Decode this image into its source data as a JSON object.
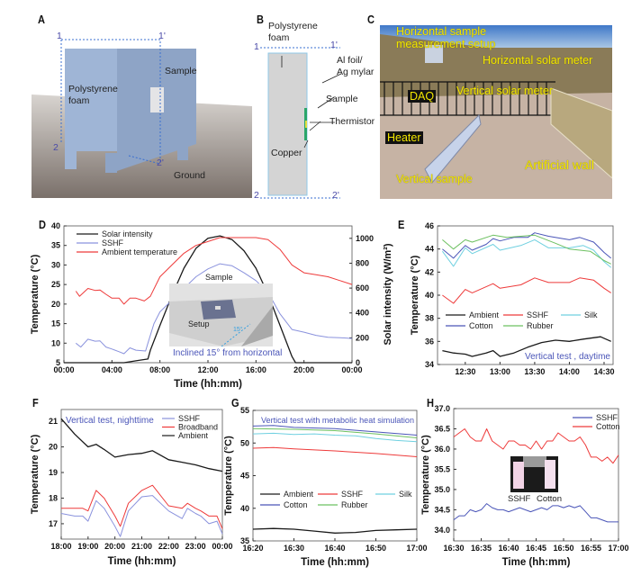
{
  "panels": {
    "A": {
      "letter": "A",
      "pt1": "1",
      "pt1p": "1'",
      "pt2": "2",
      "pt2p": "2'",
      "sample": "Sample",
      "foam1": "Polystyrene",
      "foam2": "foam",
      "ground": "Ground"
    },
    "B": {
      "letter": "B",
      "foam1": "Polystyrene",
      "foam2": "foam",
      "pt1": "1",
      "pt1p": "1'",
      "pt2": "2",
      "pt2p": "2'",
      "foil1": "Al foil/",
      "foil2": "Ag mylar",
      "sample": "Sample",
      "thermistor": "Thermistor",
      "copper": "Copper"
    },
    "C": {
      "letter": "C",
      "horiz_setup1": "Horizontal sample",
      "horiz_setup2": "measurement setup",
      "horiz_meter": "Horizontal solar meter",
      "daq": "DAQ",
      "vert_meter": "Vertical solar meter",
      "heater": "Heater",
      "vert_sample": "Vertical sample",
      "wall": "Artificial wall"
    },
    "D": {
      "letter": "D",
      "inset_sample": "Sample",
      "inset_setup": "Setup",
      "inset_angle": "15°",
      "inset_caption": "Inclined 15° from horizontal"
    },
    "E": {
      "letter": "E"
    },
    "F": {
      "letter": "F"
    },
    "G": {
      "letter": "G"
    },
    "H": {
      "letter": "H",
      "inset_left": "SSHF",
      "inset_right": "Cotton"
    }
  },
  "colors": {
    "black": "#1a1a1a",
    "red": "#ee3a3a",
    "blue": "#4a55b8",
    "lightblue": "#8a92dd",
    "silk": "#6fd0e0",
    "rubber": "#6cc060",
    "annotation": "#4a55b8"
  },
  "chart_data": [
    {
      "id": "D",
      "type": "line",
      "title": "",
      "xlabel": "Time (hh:mm)",
      "ylabel": "Temperature (°C)",
      "y2label": "Solar intensity (W/m²)",
      "xlim": [
        0,
        24
      ],
      "ylim": [
        5,
        40
      ],
      "y2lim": [
        0,
        1100
      ],
      "xticks": [
        0,
        4,
        8,
        12,
        16,
        20,
        24
      ],
      "xtick_labels": [
        "00:00",
        "04:00",
        "08:00",
        "12:00",
        "16:00",
        "20:00",
        "00:00"
      ],
      "yticks": [
        5,
        10,
        15,
        20,
        25,
        30,
        35,
        40
      ],
      "ytick_labels": [
        "5",
        "10",
        "15",
        "20",
        "25",
        "30",
        "35",
        "40"
      ],
      "y2ticks": [
        0,
        200,
        400,
        600,
        800,
        1000
      ],
      "y2tick_labels": [
        "0",
        "200",
        "400",
        "600",
        "800",
        "1000"
      ],
      "legend_placement": "top-left",
      "annotation": "",
      "series": [
        {
          "name": "Solar intensity",
          "color": "#1a1a1a",
          "axis": "y2",
          "x": [
            0,
            5,
            6,
            7,
            7.2,
            8,
            9,
            10,
            11,
            12,
            13,
            14,
            15,
            16,
            17,
            18,
            19,
            19.3,
            24
          ],
          "y": [
            0,
            0,
            15,
            30,
            100,
            300,
            540,
            760,
            920,
            1000,
            1020,
            990,
            900,
            760,
            550,
            300,
            50,
            0,
            0
          ]
        },
        {
          "name": "SSHF",
          "color": "#8a92dd",
          "axis": "y",
          "x": [
            1,
            1.4,
            2,
            2.6,
            3,
            3.5,
            4,
            4.6,
            5,
            5.5,
            6,
            6.8,
            7,
            7.5,
            8,
            9,
            10,
            11,
            12,
            13,
            14,
            15,
            16,
            17,
            18,
            19,
            20,
            21,
            22,
            23,
            24
          ],
          "y": [
            10,
            9,
            11,
            10.5,
            10.6,
            9,
            8.5,
            7.8,
            7.3,
            8.8,
            8.2,
            8,
            10,
            15,
            18,
            21,
            24,
            27,
            29,
            30.3,
            29.8,
            28,
            26,
            23,
            17.5,
            13.5,
            12.8,
            12,
            11.5,
            11.4,
            11.2
          ]
        },
        {
          "name": "Ambient temperature",
          "color": "#ee3a3a",
          "axis": "y",
          "x": [
            1,
            1.3,
            2,
            2.6,
            3,
            3.5,
            4,
            4.6,
            5,
            5.5,
            6,
            6.7,
            7.2,
            8,
            9,
            10,
            11,
            12,
            13,
            14,
            15,
            16,
            17,
            18,
            19,
            20,
            21,
            22,
            23,
            24
          ],
          "y": [
            23.3,
            22,
            24,
            23.5,
            23.6,
            22.5,
            21.5,
            21.5,
            20,
            21.5,
            21.5,
            20.8,
            22,
            27,
            30,
            33,
            35,
            36,
            37,
            37,
            37,
            37,
            36.5,
            34,
            30,
            28,
            27.5,
            27,
            26,
            25
          ]
        }
      ]
    },
    {
      "id": "E",
      "type": "line",
      "title": "",
      "xlabel": "",
      "ylabel": "Temperature (°C)",
      "xlim": [
        12.1,
        14.63
      ],
      "ylim": [
        34,
        46
      ],
      "xticks": [
        12.5,
        13,
        13.5,
        14,
        14.5
      ],
      "xtick_labels": [
        "12:30",
        "13:00",
        "13:30",
        "14:00",
        "14:30"
      ],
      "yticks": [
        34,
        36,
        38,
        40,
        42,
        44,
        46
      ],
      "ytick_labels": [
        "34",
        "36",
        "38",
        "40",
        "42",
        "44",
        "46"
      ],
      "legend_placement": "lower-middle",
      "annotation": "Vertical test , daytime",
      "series": [
        {
          "name": "Ambient",
          "color": "#1a1a1a",
          "x": [
            12.17,
            12.33,
            12.5,
            12.6,
            12.8,
            12.9,
            13,
            13.2,
            13.4,
            13.6,
            13.8,
            14,
            14.2,
            14.45,
            14.6
          ],
          "y": [
            35.2,
            35,
            34.9,
            34.7,
            35,
            35.2,
            34.7,
            35,
            35.5,
            35.9,
            36.1,
            36,
            36.2,
            36.4,
            36
          ]
        },
        {
          "name": "SSHF",
          "color": "#ee3a3a",
          "x": [
            12.17,
            12.33,
            12.5,
            12.6,
            12.9,
            13,
            13.3,
            13.5,
            13.7,
            14,
            14.15,
            14.35,
            14.5,
            14.6
          ],
          "y": [
            40,
            39.3,
            40.5,
            40.2,
            41,
            40.6,
            40.9,
            41.5,
            41.1,
            41.1,
            41.5,
            41.3,
            40.6,
            40.2
          ]
        },
        {
          "name": "Silk",
          "color": "#6fd0e0",
          "x": [
            12.17,
            12.33,
            12.5,
            12.6,
            12.9,
            13,
            13.3,
            13.5,
            13.7,
            14,
            14.2,
            14.35,
            14.5,
            14.6
          ],
          "y": [
            43.8,
            42.5,
            44.1,
            43.6,
            44.4,
            43.9,
            44.3,
            44.8,
            44.1,
            44.1,
            44.3,
            43.9,
            42.9,
            42.4
          ]
        },
        {
          "name": "Cotton",
          "color": "#4a55b8",
          "x": [
            12.17,
            12.33,
            12.5,
            12.6,
            12.8,
            12.9,
            13,
            13.2,
            13.4,
            13.5,
            13.7,
            14,
            14.15,
            14.35,
            14.5,
            14.6
          ],
          "y": [
            44,
            43.2,
            44.3,
            43.9,
            44.4,
            44.9,
            44.7,
            45,
            45,
            45.4,
            45.1,
            44.8,
            45,
            44.6,
            43.7,
            43.2
          ]
        },
        {
          "name": "Rubber",
          "color": "#6cc060",
          "x": [
            12.17,
            12.33,
            12.5,
            12.6,
            12.9,
            13.1,
            13.5,
            13.8,
            14,
            14.3,
            14.5,
            14.6
          ],
          "y": [
            44.8,
            44,
            44.8,
            44.6,
            45.2,
            45,
            45.2,
            44.5,
            44,
            43.8,
            43,
            42.7
          ]
        }
      ]
    },
    {
      "id": "F",
      "type": "line",
      "title": "",
      "xlabel": "Time (hh:mm)",
      "ylabel": "Temperature (°C)",
      "xlim": [
        18,
        24
      ],
      "ylim": [
        16.4,
        21.46
      ],
      "xticks": [
        18,
        19,
        20,
        21,
        22,
        23,
        24
      ],
      "xtick_labels": [
        "18:00",
        "19:00",
        "20:00",
        "21:00",
        "22:00",
        "23:00",
        "00:00"
      ],
      "yticks": [
        17,
        18,
        19,
        20,
        21
      ],
      "ytick_labels": [
        "17",
        "18",
        "19",
        "20",
        "21"
      ],
      "legend_placement": "top-right",
      "annotation": "Vertical test, nighttime",
      "series": [
        {
          "name": "SSHF",
          "color": "#8a92dd",
          "x": [
            18,
            18.5,
            18.8,
            19,
            19.3,
            19.6,
            20,
            20.2,
            20.5,
            21,
            21.4,
            22,
            22.5,
            22.7,
            23,
            23.2,
            23.5,
            23.8,
            24
          ],
          "y": [
            17.4,
            17.3,
            17.3,
            17.1,
            17.9,
            17.6,
            16.9,
            16.5,
            17.5,
            18.05,
            18.1,
            17.5,
            17.2,
            17.6,
            17.4,
            17.3,
            17.0,
            17.1,
            16.6
          ]
        },
        {
          "name": "Broadband",
          "color": "#ee3a3a",
          "x": [
            18,
            18.5,
            18.8,
            19,
            19.3,
            19.6,
            20,
            20.2,
            20.5,
            21,
            21.4,
            22,
            22.5,
            22.7,
            23,
            23.2,
            23.5,
            23.8,
            24
          ],
          "y": [
            17.6,
            17.6,
            17.6,
            17.5,
            18.3,
            18,
            17.3,
            16.9,
            17.8,
            18.3,
            18.5,
            17.7,
            17.6,
            17.8,
            17.6,
            17.5,
            17.3,
            17.3,
            16.8
          ]
        },
        {
          "name": "Ambient",
          "color": "#1a1a1a",
          "x": [
            18,
            18.5,
            19,
            19.3,
            19.6,
            20,
            20.5,
            21,
            21.4,
            22,
            22.5,
            23,
            23.5,
            24
          ],
          "y": [
            21.1,
            20.5,
            20,
            20.1,
            19.9,
            19.6,
            19.7,
            19.75,
            19.85,
            19.5,
            19.4,
            19.3,
            19.15,
            19.05
          ]
        }
      ]
    },
    {
      "id": "G",
      "type": "line",
      "title": "",
      "xlabel": "Time (hh:mm)",
      "ylabel": "Temperature (°C)",
      "xlim": [
        0,
        40
      ],
      "ylim": [
        35,
        55
      ],
      "xticks": [
        0,
        10,
        20,
        30,
        40
      ],
      "xtick_labels": [
        "16:20",
        "16:30",
        "16:40",
        "16:50",
        "17:00"
      ],
      "yticks": [
        35,
        40,
        45,
        50,
        55
      ],
      "ytick_labels": [
        "35",
        "40",
        "45",
        "50",
        "55"
      ],
      "legend_placement": "lower-middle",
      "annotation": "Vertical test with metabolic heat simulation",
      "series": [
        {
          "name": "Ambient",
          "color": "#1a1a1a",
          "x": [
            0,
            5,
            10,
            15,
            20,
            25,
            30,
            35,
            40
          ],
          "y": [
            36.8,
            36.9,
            36.8,
            36.5,
            36.2,
            36.3,
            36.6,
            36.7,
            36.8
          ]
        },
        {
          "name": "SSHF",
          "color": "#ee3a3a",
          "x": [
            0,
            5,
            10,
            20,
            30,
            40
          ],
          "y": [
            49.2,
            49.3,
            49.1,
            48.8,
            48.4,
            47.9
          ]
        },
        {
          "name": "Silk",
          "color": "#6fd0e0",
          "x": [
            0,
            5,
            10,
            15,
            20,
            25,
            30,
            35,
            40
          ],
          "y": [
            51.4,
            51.5,
            51.3,
            51.4,
            51.2,
            51.1,
            50.7,
            50.4,
            50.2
          ]
        },
        {
          "name": "Cotton",
          "color": "#4a55b8",
          "x": [
            0,
            5,
            10,
            20,
            30,
            40
          ],
          "y": [
            52.6,
            52.7,
            52.4,
            52.2,
            51.7,
            51.2
          ]
        },
        {
          "name": "Rubber",
          "color": "#6cc060",
          "x": [
            0,
            10,
            20,
            30,
            40
          ],
          "y": [
            52.2,
            52.1,
            51.9,
            51.4,
            50.8
          ]
        }
      ]
    },
    {
      "id": "H",
      "type": "line",
      "title": "",
      "xlabel": "Time (hh:mm)",
      "ylabel": "Temperature (°C)",
      "xlim": [
        0,
        30
      ],
      "ylim": [
        33.73,
        37.0
      ],
      "xticks": [
        0,
        5,
        10,
        15,
        20,
        25,
        30
      ],
      "xtick_labels": [
        "16:30",
        "16:35",
        "16:40",
        "16:45",
        "16:50",
        "16:55",
        "17:00"
      ],
      "yticks": [
        34.0,
        34.5,
        35.0,
        35.5,
        36.0,
        36.5,
        37.0
      ],
      "ytick_labels": [
        "34.0",
        "34.5",
        "35.0",
        "35.5",
        "36.0",
        "36.5",
        "37.0"
      ],
      "legend_placement": "top-right",
      "annotation": "",
      "series": [
        {
          "name": "SSHF",
          "color": "#4a55b8",
          "x": [
            0,
            1,
            2,
            3,
            4,
            5,
            6,
            7,
            8,
            9,
            10,
            11,
            12,
            13,
            14,
            15,
            16,
            17,
            18,
            19,
            20,
            21,
            22,
            23,
            24,
            25,
            26,
            27,
            28,
            29,
            30
          ],
          "y": [
            34.25,
            34.35,
            34.35,
            34.5,
            34.45,
            34.5,
            34.65,
            34.55,
            34.5,
            34.5,
            34.45,
            34.5,
            34.55,
            34.5,
            34.45,
            34.5,
            34.55,
            34.5,
            34.6,
            34.6,
            34.55,
            34.6,
            34.55,
            34.6,
            34.45,
            34.3,
            34.3,
            34.25,
            34.2,
            34.2,
            34.2
          ]
        },
        {
          "name": "Cotton",
          "color": "#ee3a3a",
          "x": [
            0,
            1,
            2,
            3,
            4,
            5,
            6,
            7,
            8,
            9,
            10,
            11,
            12,
            13,
            14,
            15,
            16,
            17,
            18,
            19,
            20,
            21,
            22,
            23,
            24,
            25,
            26,
            27,
            28,
            29,
            30
          ],
          "y": [
            36.3,
            36.4,
            36.5,
            36.3,
            36.2,
            36.2,
            36.5,
            36.2,
            36.1,
            36.0,
            36.2,
            36.2,
            36.1,
            36.1,
            36.0,
            36.2,
            36.0,
            36.2,
            36.2,
            36.4,
            36.3,
            36.2,
            36.2,
            36.3,
            36.1,
            35.8,
            35.8,
            35.7,
            35.8,
            35.65,
            35.85
          ]
        }
      ]
    }
  ]
}
